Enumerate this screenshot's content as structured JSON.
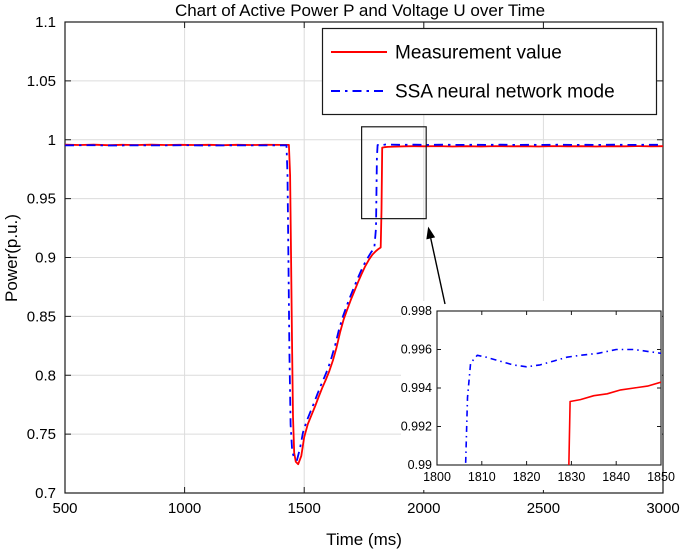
{
  "chart_data": {
    "type": "line",
    "title": "Chart of Active Power P and Voltage U over Time",
    "xlabel": "Time (ms)",
    "ylabel": "Power(p.u.)",
    "xlim": [
      500,
      3000
    ],
    "ylim": [
      0.7,
      1.1
    ],
    "xticks": [
      500,
      1000,
      1500,
      2000,
      2500,
      3000
    ],
    "xtick_labels": [
      "500",
      "1000",
      "1500",
      "2000",
      "2500",
      "3000"
    ],
    "yticks": [
      0.7,
      0.75,
      0.8,
      0.85,
      0.9,
      0.95,
      1.0,
      1.05,
      1.1
    ],
    "ytick_labels": [
      "0.7",
      "0.75",
      "0.8",
      "0.85",
      "0.9",
      "0.95",
      "1",
      "1.05",
      "1.1"
    ],
    "grid": true,
    "grid_color": "#dcdcdc",
    "axis_color": "#1a1a1a",
    "legend_position": "top-right-inside",
    "series": [
      {
        "name": "Measurement value",
        "color": "#ff0000",
        "style": "solid",
        "width": 1.8,
        "points": [
          [
            500,
            0.9958
          ],
          [
            560,
            0.9955
          ],
          [
            620,
            0.9958
          ],
          [
            680,
            0.9954
          ],
          [
            740,
            0.9957
          ],
          [
            800,
            0.9955
          ],
          [
            860,
            0.9958
          ],
          [
            920,
            0.9955
          ],
          [
            980,
            0.9957
          ],
          [
            1040,
            0.9955
          ],
          [
            1100,
            0.9957
          ],
          [
            1160,
            0.9954
          ],
          [
            1220,
            0.9957
          ],
          [
            1280,
            0.9955
          ],
          [
            1340,
            0.9957
          ],
          [
            1400,
            0.9956
          ],
          [
            1436,
            0.9956
          ],
          [
            1441,
            0.97
          ],
          [
            1445,
            0.905
          ],
          [
            1449,
            0.83
          ],
          [
            1453,
            0.765
          ],
          [
            1458,
            0.734
          ],
          [
            1465,
            0.7265
          ],
          [
            1475,
            0.7245
          ],
          [
            1488,
            0.7315
          ],
          [
            1500,
            0.7475
          ],
          [
            1515,
            0.7585
          ],
          [
            1530,
            0.766
          ],
          [
            1545,
            0.7735
          ],
          [
            1560,
            0.7815
          ],
          [
            1575,
            0.789
          ],
          [
            1590,
            0.796
          ],
          [
            1605,
            0.8035
          ],
          [
            1620,
            0.8125
          ],
          [
            1635,
            0.8235
          ],
          [
            1650,
            0.8365
          ],
          [
            1665,
            0.8475
          ],
          [
            1680,
            0.856
          ],
          [
            1695,
            0.864
          ],
          [
            1710,
            0.8715
          ],
          [
            1725,
            0.879
          ],
          [
            1740,
            0.886
          ],
          [
            1755,
            0.8925
          ],
          [
            1770,
            0.898
          ],
          [
            1785,
            0.9025
          ],
          [
            1800,
            0.9055
          ],
          [
            1812,
            0.9075
          ],
          [
            1820,
            0.9085
          ],
          [
            1823,
            0.94
          ],
          [
            1826,
            0.9933
          ],
          [
            1835,
            0.9937
          ],
          [
            1850,
            0.9939
          ],
          [
            1880,
            0.9942
          ],
          [
            1920,
            0.9944
          ],
          [
            1960,
            0.9945
          ],
          [
            2000,
            0.9944
          ],
          [
            2060,
            0.9946
          ],
          [
            2120,
            0.9943
          ],
          [
            2180,
            0.9945
          ],
          [
            2240,
            0.9943
          ],
          [
            2300,
            0.9946
          ],
          [
            2360,
            0.9944
          ],
          [
            2420,
            0.9945
          ],
          [
            2480,
            0.9943
          ],
          [
            2540,
            0.9946
          ],
          [
            2600,
            0.9944
          ],
          [
            2660,
            0.9945
          ],
          [
            2720,
            0.9943
          ],
          [
            2780,
            0.9945
          ],
          [
            2840,
            0.9944
          ],
          [
            2900,
            0.9946
          ],
          [
            2950,
            0.9944
          ],
          [
            3000,
            0.9945
          ]
        ]
      },
      {
        "name": "SSA neural network mode",
        "color": "#0000ff",
        "style": "dashdot",
        "width": 1.8,
        "points": [
          [
            500,
            0.9952
          ],
          [
            600,
            0.9954
          ],
          [
            700,
            0.9951
          ],
          [
            800,
            0.9953
          ],
          [
            900,
            0.9952
          ],
          [
            1000,
            0.9954
          ],
          [
            1100,
            0.9951
          ],
          [
            1200,
            0.9953
          ],
          [
            1300,
            0.9952
          ],
          [
            1400,
            0.9953
          ],
          [
            1426,
            0.9953
          ],
          [
            1430,
            0.97
          ],
          [
            1434,
            0.9
          ],
          [
            1438,
            0.82
          ],
          [
            1443,
            0.758
          ],
          [
            1450,
            0.7355
          ],
          [
            1458,
            0.7295
          ],
          [
            1470,
            0.728
          ],
          [
            1482,
            0.7375
          ],
          [
            1495,
            0.7515
          ],
          [
            1510,
            0.761
          ],
          [
            1525,
            0.7685
          ],
          [
            1540,
            0.776
          ],
          [
            1555,
            0.784
          ],
          [
            1570,
            0.7915
          ],
          [
            1585,
            0.7985
          ],
          [
            1600,
            0.806
          ],
          [
            1615,
            0.8155
          ],
          [
            1630,
            0.826
          ],
          [
            1645,
            0.8385
          ],
          [
            1660,
            0.849
          ],
          [
            1675,
            0.8575
          ],
          [
            1690,
            0.8655
          ],
          [
            1705,
            0.873
          ],
          [
            1720,
            0.8805
          ],
          [
            1735,
            0.8875
          ],
          [
            1750,
            0.894
          ],
          [
            1765,
            0.8995
          ],
          [
            1780,
            0.9045
          ],
          [
            1793,
            0.908
          ],
          [
            1800,
            0.925
          ],
          [
            1804,
            0.985
          ],
          [
            1807,
            0.9955
          ],
          [
            1812,
            0.9956
          ],
          [
            1818,
            0.9951
          ],
          [
            1824,
            0.9953
          ],
          [
            1830,
            0.9956
          ],
          [
            1840,
            0.996
          ],
          [
            1860,
            0.9959
          ],
          [
            1900,
            0.9957
          ],
          [
            1960,
            0.9958
          ],
          [
            2020,
            0.9956
          ],
          [
            2080,
            0.9958
          ],
          [
            2140,
            0.9956
          ],
          [
            2200,
            0.9957
          ],
          [
            2260,
            0.9956
          ],
          [
            2320,
            0.9958
          ],
          [
            2380,
            0.9956
          ],
          [
            2440,
            0.9957
          ],
          [
            2500,
            0.9956
          ],
          [
            2560,
            0.9958
          ],
          [
            2620,
            0.9956
          ],
          [
            2680,
            0.9957
          ],
          [
            2740,
            0.9956
          ],
          [
            2800,
            0.9958
          ],
          [
            2860,
            0.9956
          ],
          [
            2920,
            0.9957
          ],
          [
            3000,
            0.9957
          ]
        ]
      }
    ],
    "inset": {
      "xlim": [
        1800,
        1850
      ],
      "ylim": [
        0.99,
        0.998
      ],
      "xticks": [
        1800,
        1810,
        1820,
        1830,
        1840,
        1850
      ],
      "xtick_labels": [
        "1800",
        "1810",
        "1820",
        "1830",
        "1840",
        "1850"
      ],
      "yticks": [
        0.99,
        0.992,
        0.994,
        0.996,
        0.998
      ],
      "ytick_labels": [
        "0.99",
        "0.992",
        "0.994",
        "0.996",
        "0.998"
      ],
      "series": [
        {
          "name": "Measurement value",
          "color": "#ff0000",
          "style": "solid",
          "width": 1.6,
          "points": [
            [
              1829.3,
              0.9885
            ],
            [
              1829.7,
              0.9933
            ],
            [
              1832,
              0.9934
            ],
            [
              1835,
              0.9936
            ],
            [
              1838,
              0.9937
            ],
            [
              1841,
              0.9939
            ],
            [
              1844,
              0.994
            ],
            [
              1847,
              0.9941
            ],
            [
              1850,
              0.9943
            ]
          ]
        },
        {
          "name": "SSA neural network mode",
          "color": "#0000ff",
          "style": "dashdot",
          "width": 1.6,
          "points": [
            [
              1806.2,
              0.9885
            ],
            [
              1806.8,
              0.9935
            ],
            [
              1807.5,
              0.9953
            ],
            [
              1809,
              0.9957
            ],
            [
              1811,
              0.9956
            ],
            [
              1814,
              0.9954
            ],
            [
              1817,
              0.9952
            ],
            [
              1820,
              0.9951
            ],
            [
              1823,
              0.9952
            ],
            [
              1826,
              0.9954
            ],
            [
              1829,
              0.9956
            ],
            [
              1832,
              0.9957
            ],
            [
              1836,
              0.9958
            ],
            [
              1840,
              0.996
            ],
            [
              1844,
              0.996
            ],
            [
              1847,
              0.9959
            ],
            [
              1850,
              0.9958
            ]
          ]
        }
      ]
    },
    "annotation": {
      "rect": {
        "x": [
          1740,
          2010
        ],
        "y": [
          0.933,
          1.011
        ]
      }
    }
  }
}
